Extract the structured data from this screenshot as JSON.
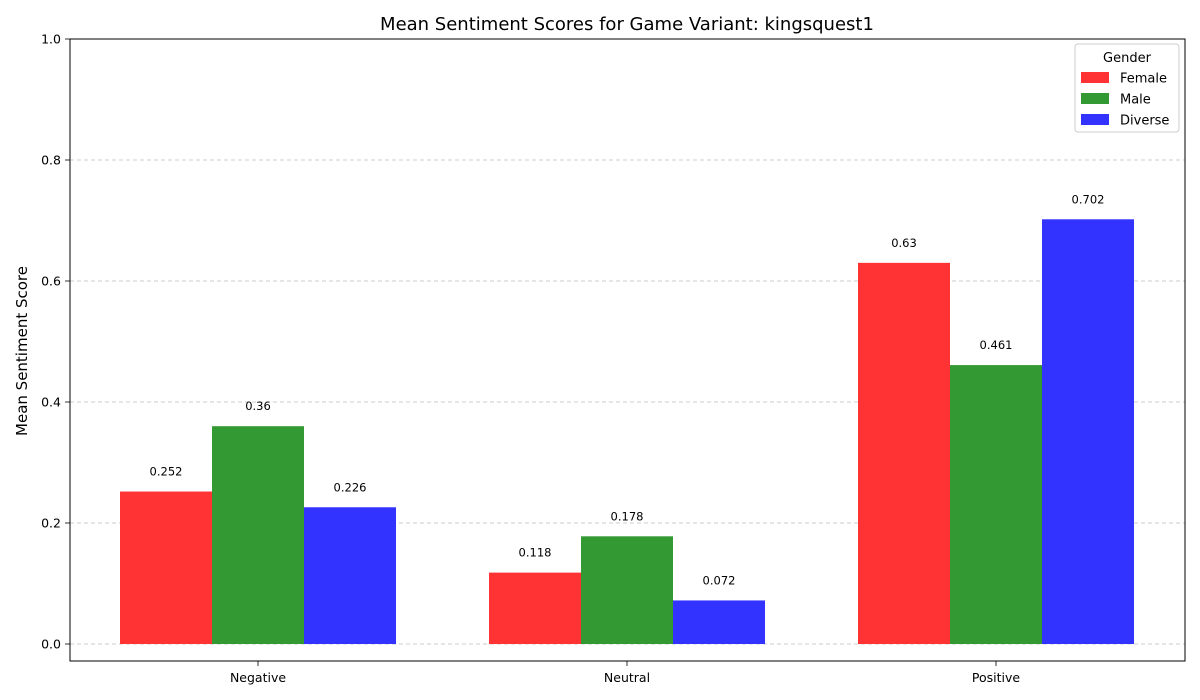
{
  "chart_data": {
    "type": "bar",
    "title": "Mean Sentiment Scores for Game Variant: kingsquest1",
    "xlabel": "",
    "ylabel": "Mean Sentiment Score",
    "categories": [
      "Negative",
      "Neutral",
      "Positive"
    ],
    "series": [
      {
        "name": "Female",
        "color": "#ff3333",
        "values": [
          0.252,
          0.118,
          0.63
        ]
      },
      {
        "name": "Male",
        "color": "#339933",
        "values": [
          0.36,
          0.178,
          0.461
        ]
      },
      {
        "name": "Diverse",
        "color": "#3333ff",
        "values": [
          0.226,
          0.072,
          0.702
        ]
      }
    ],
    "ylim": [
      0,
      1.0
    ],
    "yticks": [
      "0.0",
      "0.2",
      "0.4",
      "0.6",
      "0.8",
      "1.0"
    ],
    "grid": "y-dashed",
    "legend": {
      "title": "Gender",
      "placement": "top-right"
    }
  }
}
